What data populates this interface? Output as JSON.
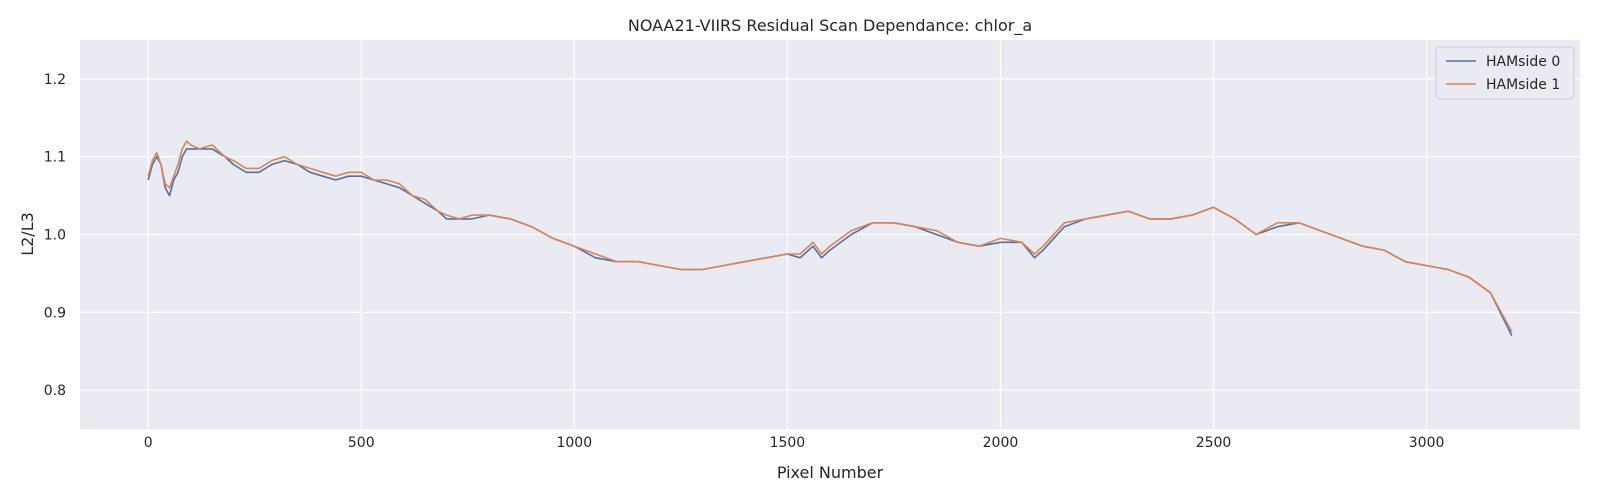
{
  "chart_data": {
    "type": "line",
    "title": "NOAA21-VIIRS Residual Scan Dependance: chlor_a",
    "xlabel": "Pixel Number",
    "ylabel": "L2/L3",
    "xlim": [
      -160,
      3360
    ],
    "ylim": [
      0.75,
      1.25
    ],
    "xticks": [
      0,
      500,
      1000,
      1500,
      2000,
      2500,
      3000
    ],
    "yticks": [
      0.8,
      0.9,
      1.0,
      1.1,
      1.2
    ],
    "xtick_labels": [
      "0",
      "500",
      "1000",
      "1500",
      "2000",
      "2500",
      "3000"
    ],
    "ytick_labels": [
      "0.8",
      "0.9",
      "1.0",
      "1.1",
      "1.2"
    ],
    "grid": true,
    "legend_position": "top-right",
    "background": "#eaeaf2",
    "series": [
      {
        "name": "HAMside 0",
        "color": "#4c72b0",
        "x": [
          0,
          10,
          20,
          30,
          40,
          50,
          60,
          70,
          80,
          90,
          100,
          120,
          150,
          180,
          200,
          230,
          260,
          290,
          320,
          350,
          380,
          410,
          440,
          470,
          500,
          530,
          560,
          590,
          620,
          650,
          680,
          700,
          730,
          760,
          800,
          850,
          900,
          950,
          1000,
          1050,
          1100,
          1150,
          1200,
          1250,
          1300,
          1350,
          1400,
          1450,
          1500,
          1530,
          1560,
          1580,
          1600,
          1650,
          1700,
          1750,
          1800,
          1850,
          1900,
          1950,
          2000,
          2050,
          2080,
          2100,
          2150,
          2200,
          2250,
          2300,
          2350,
          2400,
          2450,
          2500,
          2550,
          2600,
          2650,
          2700,
          2750,
          2800,
          2850,
          2900,
          2950,
          3000,
          3050,
          3100,
          3150,
          3200
        ],
        "y": [
          1.07,
          1.09,
          1.1,
          1.09,
          1.06,
          1.05,
          1.07,
          1.08,
          1.1,
          1.11,
          1.11,
          1.11,
          1.11,
          1.1,
          1.09,
          1.08,
          1.08,
          1.09,
          1.095,
          1.09,
          1.08,
          1.075,
          1.07,
          1.075,
          1.075,
          1.07,
          1.065,
          1.06,
          1.05,
          1.04,
          1.03,
          1.02,
          1.02,
          1.02,
          1.025,
          1.02,
          1.01,
          0.995,
          0.985,
          0.97,
          0.965,
          0.965,
          0.96,
          0.955,
          0.955,
          0.96,
          0.965,
          0.97,
          0.975,
          0.97,
          0.985,
          0.97,
          0.98,
          1.0,
          1.015,
          1.015,
          1.01,
          1.0,
          0.99,
          0.985,
          0.99,
          0.99,
          0.97,
          0.98,
          1.01,
          1.02,
          1.025,
          1.03,
          1.02,
          1.02,
          1.025,
          1.035,
          1.02,
          1.0,
          1.01,
          1.015,
          1.005,
          0.995,
          0.985,
          0.98,
          0.965,
          0.96,
          0.955,
          0.945,
          0.925,
          0.87
        ]
      },
      {
        "name": "HAMside 1",
        "color": "#dd8452",
        "x": [
          0,
          10,
          20,
          30,
          40,
          50,
          60,
          70,
          80,
          90,
          100,
          120,
          150,
          180,
          200,
          230,
          260,
          290,
          320,
          350,
          380,
          410,
          440,
          470,
          500,
          530,
          560,
          590,
          620,
          650,
          680,
          700,
          730,
          760,
          800,
          850,
          900,
          950,
          1000,
          1050,
          1100,
          1150,
          1200,
          1250,
          1300,
          1350,
          1400,
          1450,
          1500,
          1530,
          1560,
          1580,
          1600,
          1650,
          1700,
          1750,
          1800,
          1850,
          1900,
          1950,
          2000,
          2050,
          2080,
          2100,
          2150,
          2200,
          2250,
          2300,
          2350,
          2400,
          2450,
          2500,
          2550,
          2600,
          2650,
          2700,
          2750,
          2800,
          2850,
          2900,
          2950,
          3000,
          3050,
          3100,
          3150,
          3200
        ],
        "y": [
          1.075,
          1.095,
          1.105,
          1.09,
          1.065,
          1.06,
          1.075,
          1.09,
          1.11,
          1.12,
          1.115,
          1.11,
          1.115,
          1.1,
          1.095,
          1.085,
          1.085,
          1.095,
          1.1,
          1.09,
          1.085,
          1.08,
          1.075,
          1.08,
          1.08,
          1.07,
          1.07,
          1.065,
          1.05,
          1.045,
          1.03,
          1.025,
          1.02,
          1.025,
          1.025,
          1.02,
          1.01,
          0.995,
          0.985,
          0.975,
          0.965,
          0.965,
          0.96,
          0.955,
          0.955,
          0.96,
          0.965,
          0.97,
          0.975,
          0.975,
          0.99,
          0.975,
          0.985,
          1.005,
          1.015,
          1.015,
          1.01,
          1.005,
          0.99,
          0.985,
          0.995,
          0.99,
          0.975,
          0.985,
          1.015,
          1.02,
          1.025,
          1.03,
          1.02,
          1.02,
          1.025,
          1.035,
          1.02,
          1.0,
          1.015,
          1.015,
          1.005,
          0.995,
          0.985,
          0.98,
          0.965,
          0.96,
          0.955,
          0.945,
          0.925,
          0.875
        ]
      }
    ]
  }
}
